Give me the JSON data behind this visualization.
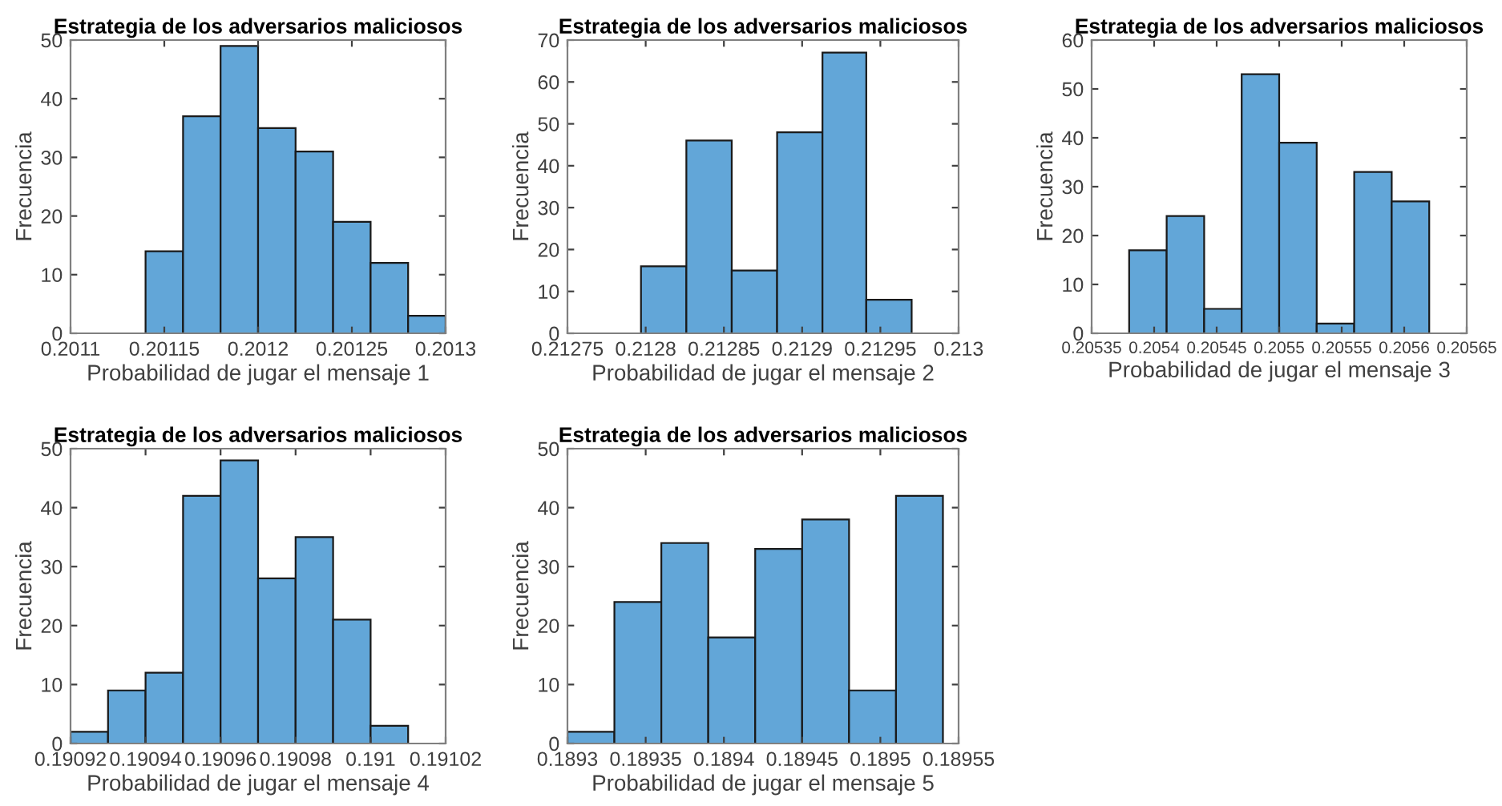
{
  "chart_data": [
    {
      "type": "histogram",
      "title": "Estrategia de los adversarios maliciosos",
      "xlabel": "Probabilidad de jugar el mensaje 1",
      "ylabel": "Frecuencia",
      "color": "#62a6d8",
      "bins": [
        0.20114,
        0.20116,
        0.20118,
        0.2012,
        0.20122,
        0.20124,
        0.20126,
        0.20128,
        0.2013
      ],
      "values": [
        14,
        37,
        49,
        35,
        31,
        19,
        12,
        3
      ],
      "xlim": [
        0.2011,
        0.2013
      ],
      "xticks": [
        0.2011,
        0.20115,
        0.2012,
        0.20125,
        0.2013
      ],
      "ylim": [
        0,
        50
      ],
      "yticks": [
        0,
        10,
        20,
        30,
        40,
        50
      ]
    },
    {
      "type": "histogram",
      "title": "Estrategia de los adversarios maliciosos",
      "xlabel": "Probabilidad de jugar el mensaje 2",
      "ylabel": "Frecuencia",
      "color": "#62a6d8",
      "bins": [
        0.212797,
        0.212826,
        0.212855,
        0.212884,
        0.212913,
        0.212941,
        0.21297
      ],
      "values": [
        16,
        46,
        15,
        48,
        67,
        8
      ],
      "xlim": [
        0.21275,
        0.213
      ],
      "xticks": [
        0.21275,
        0.2128,
        0.21285,
        0.2129,
        0.21295,
        0.213
      ],
      "ylim": [
        0,
        70
      ],
      "yticks": [
        0,
        10,
        20,
        30,
        40,
        50,
        60,
        70
      ]
    },
    {
      "type": "histogram",
      "title": "Estrategia de los adversarios maliciosos",
      "xlabel": "Probabilidad de jugar el mensaje 3",
      "ylabel": "Frecuencia",
      "color": "#62a6d8",
      "bins": [
        0.20538,
        0.20541,
        0.20544,
        0.20547,
        0.2055,
        0.20553,
        0.20556,
        0.20559,
        0.20562
      ],
      "values": [
        17,
        24,
        5,
        53,
        39,
        2,
        33,
        27
      ],
      "xlim": [
        0.20535,
        0.20565
      ],
      "xticks": [
        0.20535,
        0.2054,
        0.20545,
        0.2055,
        0.20555,
        0.2056,
        0.20565
      ],
      "ylim": [
        0,
        60
      ],
      "yticks": [
        0,
        10,
        20,
        30,
        40,
        50,
        60
      ]
    },
    {
      "type": "histogram",
      "title": "Estrategia de los adversarios maliciosos",
      "xlabel": "Probabilidad de jugar el mensaje 4",
      "ylabel": "Frecuencia",
      "color": "#62a6d8",
      "bins": [
        0.19092,
        0.19093,
        0.19094,
        0.19095,
        0.19096,
        0.19097,
        0.19098,
        0.19099,
        0.191,
        0.19101
      ],
      "values": [
        2,
        9,
        12,
        42,
        48,
        28,
        35,
        21,
        3
      ],
      "xlim": [
        0.19092,
        0.19102
      ],
      "xticks": [
        0.19092,
        0.19094,
        0.19096,
        0.19098,
        0.191,
        0.19102
      ],
      "ylim": [
        0,
        50
      ],
      "yticks": [
        0,
        10,
        20,
        30,
        40,
        50
      ]
    },
    {
      "type": "histogram",
      "title": "Estrategia de los adversarios maliciosos",
      "xlabel": "Probabilidad de jugar el mensaje 5",
      "ylabel": "Frecuencia",
      "color": "#62a6d8",
      "bins": [
        0.1893,
        0.18933,
        0.18936,
        0.18939,
        0.18942,
        0.18945,
        0.18948,
        0.18951,
        0.18954
      ],
      "values": [
        2,
        24,
        34,
        18,
        33,
        38,
        9,
        42
      ],
      "xlim": [
        0.1893,
        0.18955
      ],
      "xticks": [
        0.1893,
        0.18935,
        0.1894,
        0.18945,
        0.1895,
        0.18955
      ],
      "ylim": [
        0,
        50
      ],
      "yticks": [
        0,
        10,
        20,
        30,
        40,
        50
      ]
    }
  ]
}
